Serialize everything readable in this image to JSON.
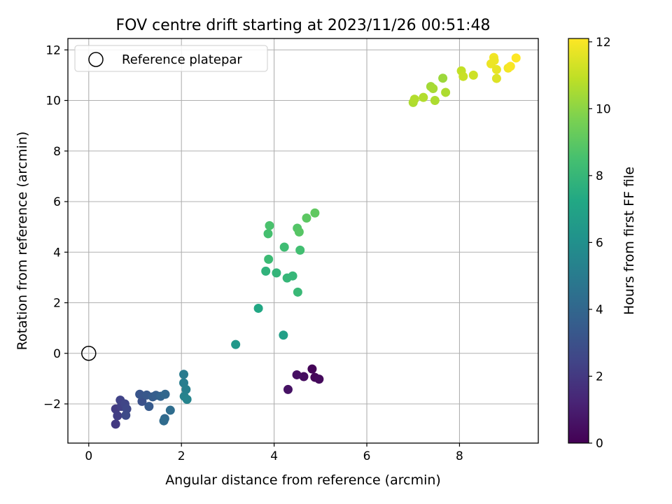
{
  "chart_data": {
    "type": "scatter",
    "title": "FOV centre drift starting at 2023/11/26 00:51:48",
    "xlabel": "Angular distance from reference (arcmin)",
    "ylabel": "Rotation from reference (arcmin)",
    "xlim": [
      -0.45,
      9.7
    ],
    "ylim": [
      -3.55,
      12.45
    ],
    "xticks": [
      0,
      2,
      4,
      6,
      8
    ],
    "xtick_labels": [
      "0",
      "2",
      "4",
      "6",
      "8"
    ],
    "yticks": [
      -2,
      0,
      2,
      4,
      6,
      8,
      10,
      12
    ],
    "ytick_labels": [
      "−2",
      "0",
      "2",
      "4",
      "6",
      "8",
      "10",
      "12"
    ],
    "grid": true,
    "legend": {
      "position": "top-left",
      "entries": [
        "Reference platepar"
      ]
    },
    "reference_point": {
      "x": 0,
      "y": 0,
      "label": "Reference platepar"
    },
    "colorbar": {
      "label": "Hours from first FF file",
      "colormap": "viridis",
      "range": [
        0,
        12.1
      ],
      "ticks": [
        0,
        2,
        4,
        6,
        8,
        10,
        12
      ],
      "tick_labels": [
        "0",
        "2",
        "4",
        "6",
        "8",
        "10",
        "12"
      ],
      "colors": [
        "#440154",
        "#482475",
        "#414487",
        "#355f8d",
        "#2a788e",
        "#21918c",
        "#22a884",
        "#44bf70",
        "#7ad151",
        "#bddf26",
        "#fde725"
      ]
    },
    "points": [
      {
        "x": 4.82,
        "y": -0.62,
        "c": 0.1
      },
      {
        "x": 4.88,
        "y": -0.95,
        "c": 0.2
      },
      {
        "x": 4.97,
        "y": -1.02,
        "c": 0.3
      },
      {
        "x": 4.64,
        "y": -0.92,
        "c": 0.4
      },
      {
        "x": 4.49,
        "y": -0.85,
        "c": 0.5
      },
      {
        "x": 4.3,
        "y": -1.43,
        "c": 0.6
      },
      {
        "x": 0.58,
        "y": -2.8,
        "c": 2.0
      },
      {
        "x": 0.58,
        "y": -2.2,
        "c": 2.1
      },
      {
        "x": 0.62,
        "y": -2.47,
        "c": 2.2
      },
      {
        "x": 0.7,
        "y": -2.1,
        "c": 2.3
      },
      {
        "x": 0.68,
        "y": -1.85,
        "c": 2.4
      },
      {
        "x": 0.78,
        "y": -2.0,
        "c": 2.5
      },
      {
        "x": 0.82,
        "y": -2.2,
        "c": 2.6
      },
      {
        "x": 0.8,
        "y": -2.45,
        "c": 2.7
      },
      {
        "x": 1.15,
        "y": -1.9,
        "c": 3.0
      },
      {
        "x": 1.1,
        "y": -1.62,
        "c": 3.2
      },
      {
        "x": 1.25,
        "y": -1.65,
        "c": 3.3
      },
      {
        "x": 1.3,
        "y": -2.1,
        "c": 3.4
      },
      {
        "x": 1.38,
        "y": -1.72,
        "c": 3.5
      },
      {
        "x": 1.45,
        "y": -1.66,
        "c": 3.6
      },
      {
        "x": 1.55,
        "y": -1.7,
        "c": 3.8
      },
      {
        "x": 1.65,
        "y": -1.62,
        "c": 4.0
      },
      {
        "x": 1.64,
        "y": -2.58,
        "c": 4.1
      },
      {
        "x": 1.62,
        "y": -2.67,
        "c": 4.2
      },
      {
        "x": 1.76,
        "y": -2.25,
        "c": 4.3
      },
      {
        "x": 2.05,
        "y": -0.83,
        "c": 5.0
      },
      {
        "x": 2.05,
        "y": -1.17,
        "c": 5.1
      },
      {
        "x": 2.1,
        "y": -1.43,
        "c": 5.2
      },
      {
        "x": 2.06,
        "y": -1.7,
        "c": 5.3
      },
      {
        "x": 2.12,
        "y": -1.82,
        "c": 5.4
      },
      {
        "x": 3.17,
        "y": 0.35,
        "c": 6.4
      },
      {
        "x": 4.2,
        "y": 0.72,
        "c": 6.8
      },
      {
        "x": 3.66,
        "y": 1.78,
        "c": 7.2
      },
      {
        "x": 3.82,
        "y": 3.25,
        "c": 7.8
      },
      {
        "x": 4.05,
        "y": 3.18,
        "c": 7.9
      },
      {
        "x": 4.28,
        "y": 2.98,
        "c": 8.0
      },
      {
        "x": 4.4,
        "y": 3.06,
        "c": 8.0
      },
      {
        "x": 4.51,
        "y": 2.42,
        "c": 8.1
      },
      {
        "x": 3.88,
        "y": 3.72,
        "c": 8.2
      },
      {
        "x": 4.22,
        "y": 4.2,
        "c": 8.3
      },
      {
        "x": 4.56,
        "y": 4.08,
        "c": 8.4
      },
      {
        "x": 3.87,
        "y": 4.73,
        "c": 8.5
      },
      {
        "x": 3.9,
        "y": 5.05,
        "c": 8.6
      },
      {
        "x": 4.5,
        "y": 4.95,
        "c": 8.8
      },
      {
        "x": 4.54,
        "y": 4.8,
        "c": 8.9
      },
      {
        "x": 4.7,
        "y": 5.35,
        "c": 9.0
      },
      {
        "x": 4.88,
        "y": 5.55,
        "c": 9.1
      },
      {
        "x": 7.0,
        "y": 9.92,
        "c": 10.6
      },
      {
        "x": 7.03,
        "y": 10.05,
        "c": 10.7
      },
      {
        "x": 7.22,
        "y": 10.12,
        "c": 10.7
      },
      {
        "x": 7.38,
        "y": 10.55,
        "c": 10.4
      },
      {
        "x": 7.43,
        "y": 10.47,
        "c": 10.5
      },
      {
        "x": 7.47,
        "y": 10.0,
        "c": 10.6
      },
      {
        "x": 7.64,
        "y": 10.88,
        "c": 10.3
      },
      {
        "x": 7.7,
        "y": 10.32,
        "c": 10.6
      },
      {
        "x": 8.04,
        "y": 11.17,
        "c": 11.0
      },
      {
        "x": 8.08,
        "y": 10.95,
        "c": 11.1
      },
      {
        "x": 8.3,
        "y": 11.0,
        "c": 11.2
      },
      {
        "x": 8.68,
        "y": 11.45,
        "c": 11.8
      },
      {
        "x": 8.74,
        "y": 11.7,
        "c": 11.9
      },
      {
        "x": 8.75,
        "y": 11.58,
        "c": 11.8
      },
      {
        "x": 8.8,
        "y": 11.22,
        "c": 11.7
      },
      {
        "x": 8.8,
        "y": 10.87,
        "c": 11.5
      },
      {
        "x": 9.05,
        "y": 11.28,
        "c": 11.9
      },
      {
        "x": 9.1,
        "y": 11.35,
        "c": 12.0
      },
      {
        "x": 9.22,
        "y": 11.68,
        "c": 12.1
      }
    ]
  }
}
